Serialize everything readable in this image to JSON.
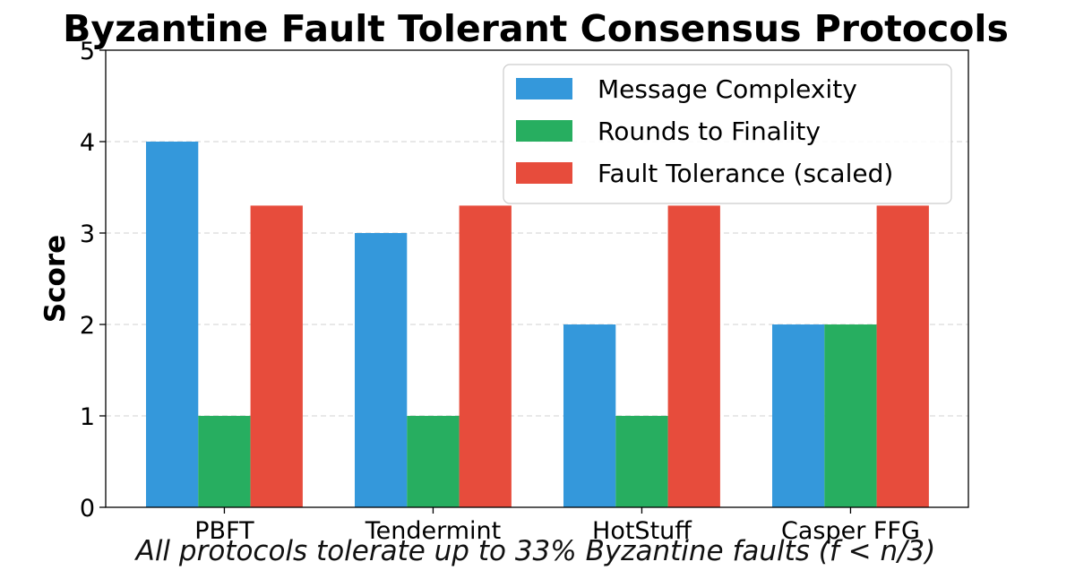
{
  "chart_data": {
    "type": "bar",
    "title": "Byzantine Fault Tolerant Consensus Protocols",
    "xlabel": "",
    "ylabel": "Score",
    "categories": [
      "PBFT",
      "Tendermint",
      "HotStuff",
      "Casper FFG"
    ],
    "series": [
      {
        "name": "Message Complexity",
        "color": "#3498db",
        "values": [
          4,
          3,
          2,
          2
        ]
      },
      {
        "name": "Rounds to Finality",
        "color": "#27ae60",
        "values": [
          1,
          1,
          1,
          2
        ]
      },
      {
        "name": "Fault Tolerance (scaled)",
        "color": "#e74c3c",
        "values": [
          3.3,
          3.3,
          3.3,
          3.3
        ]
      }
    ],
    "ylim": [
      0,
      5
    ],
    "yticks": [
      "0",
      "1",
      "2",
      "3",
      "4",
      "5"
    ],
    "grid": true,
    "legend_position": "top-right",
    "footnote": "All protocols tolerate up to 33% Byzantine faults (f < n/3)"
  }
}
